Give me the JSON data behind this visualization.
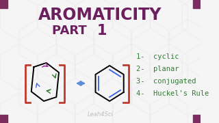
{
  "title_line1": "AROMATICITY",
  "title_line2": "PART 1",
  "title_color": "#6B1F5E",
  "part1_bold": "1",
  "background_color": "#F5F5F5",
  "corner_square_color": "#7B2D5E",
  "hex_bg_color": "#E8E0E8",
  "bracket_color": "#C0392B",
  "arrow_color": "#5B8DD9",
  "list_items": [
    "1-  cyclic",
    "2-  planar",
    "3-  conjugated",
    "4-  Huckel's Rule"
  ],
  "list_color": "#2E7D32",
  "watermark": "Leah4Sci",
  "watermark_color": "#AAAAAA"
}
